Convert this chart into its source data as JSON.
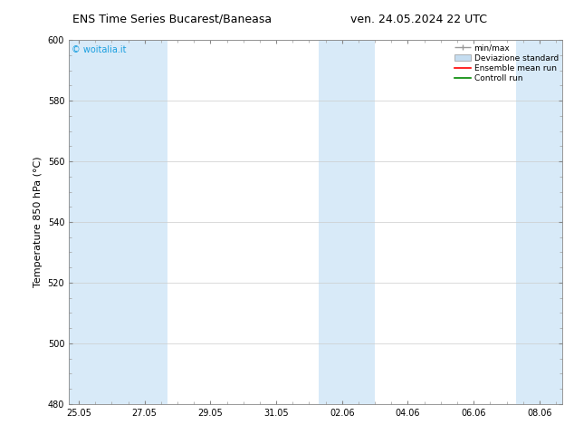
{
  "title_left": "ENS Time Series Bucarest/Baneasa",
  "title_right": "ven. 24.05.2024 22 UTC",
  "ylabel": "Temperature 850 hPa (°C)",
  "watermark": "© woitalia.it",
  "watermark_color": "#1a9fe0",
  "ylim": [
    480,
    600
  ],
  "yticks": [
    480,
    500,
    520,
    540,
    560,
    580,
    600
  ],
  "x_tick_labels": [
    "25.05",
    "27.05",
    "29.05",
    "31.05",
    "02.06",
    "04.06",
    "06.06",
    "08.06"
  ],
  "x_tick_positions": [
    0,
    2,
    4,
    6,
    8,
    10,
    12,
    14
  ],
  "x_min": -0.3,
  "x_max": 14.7,
  "shaded_color": "#d8eaf8",
  "bg_color": "#ffffff",
  "legend_labels": [
    "min/max",
    "Deviazione standard",
    "Ensemble mean run",
    "Controll run"
  ],
  "minmax_color": "#999999",
  "dev_std_color": "#c5ddf0",
  "ensemble_color": "#ff0000",
  "control_color": "#008800",
  "title_fontsize": 9,
  "ylabel_fontsize": 8,
  "tick_fontsize": 7,
  "watermark_fontsize": 7,
  "legend_fontsize": 6.5
}
